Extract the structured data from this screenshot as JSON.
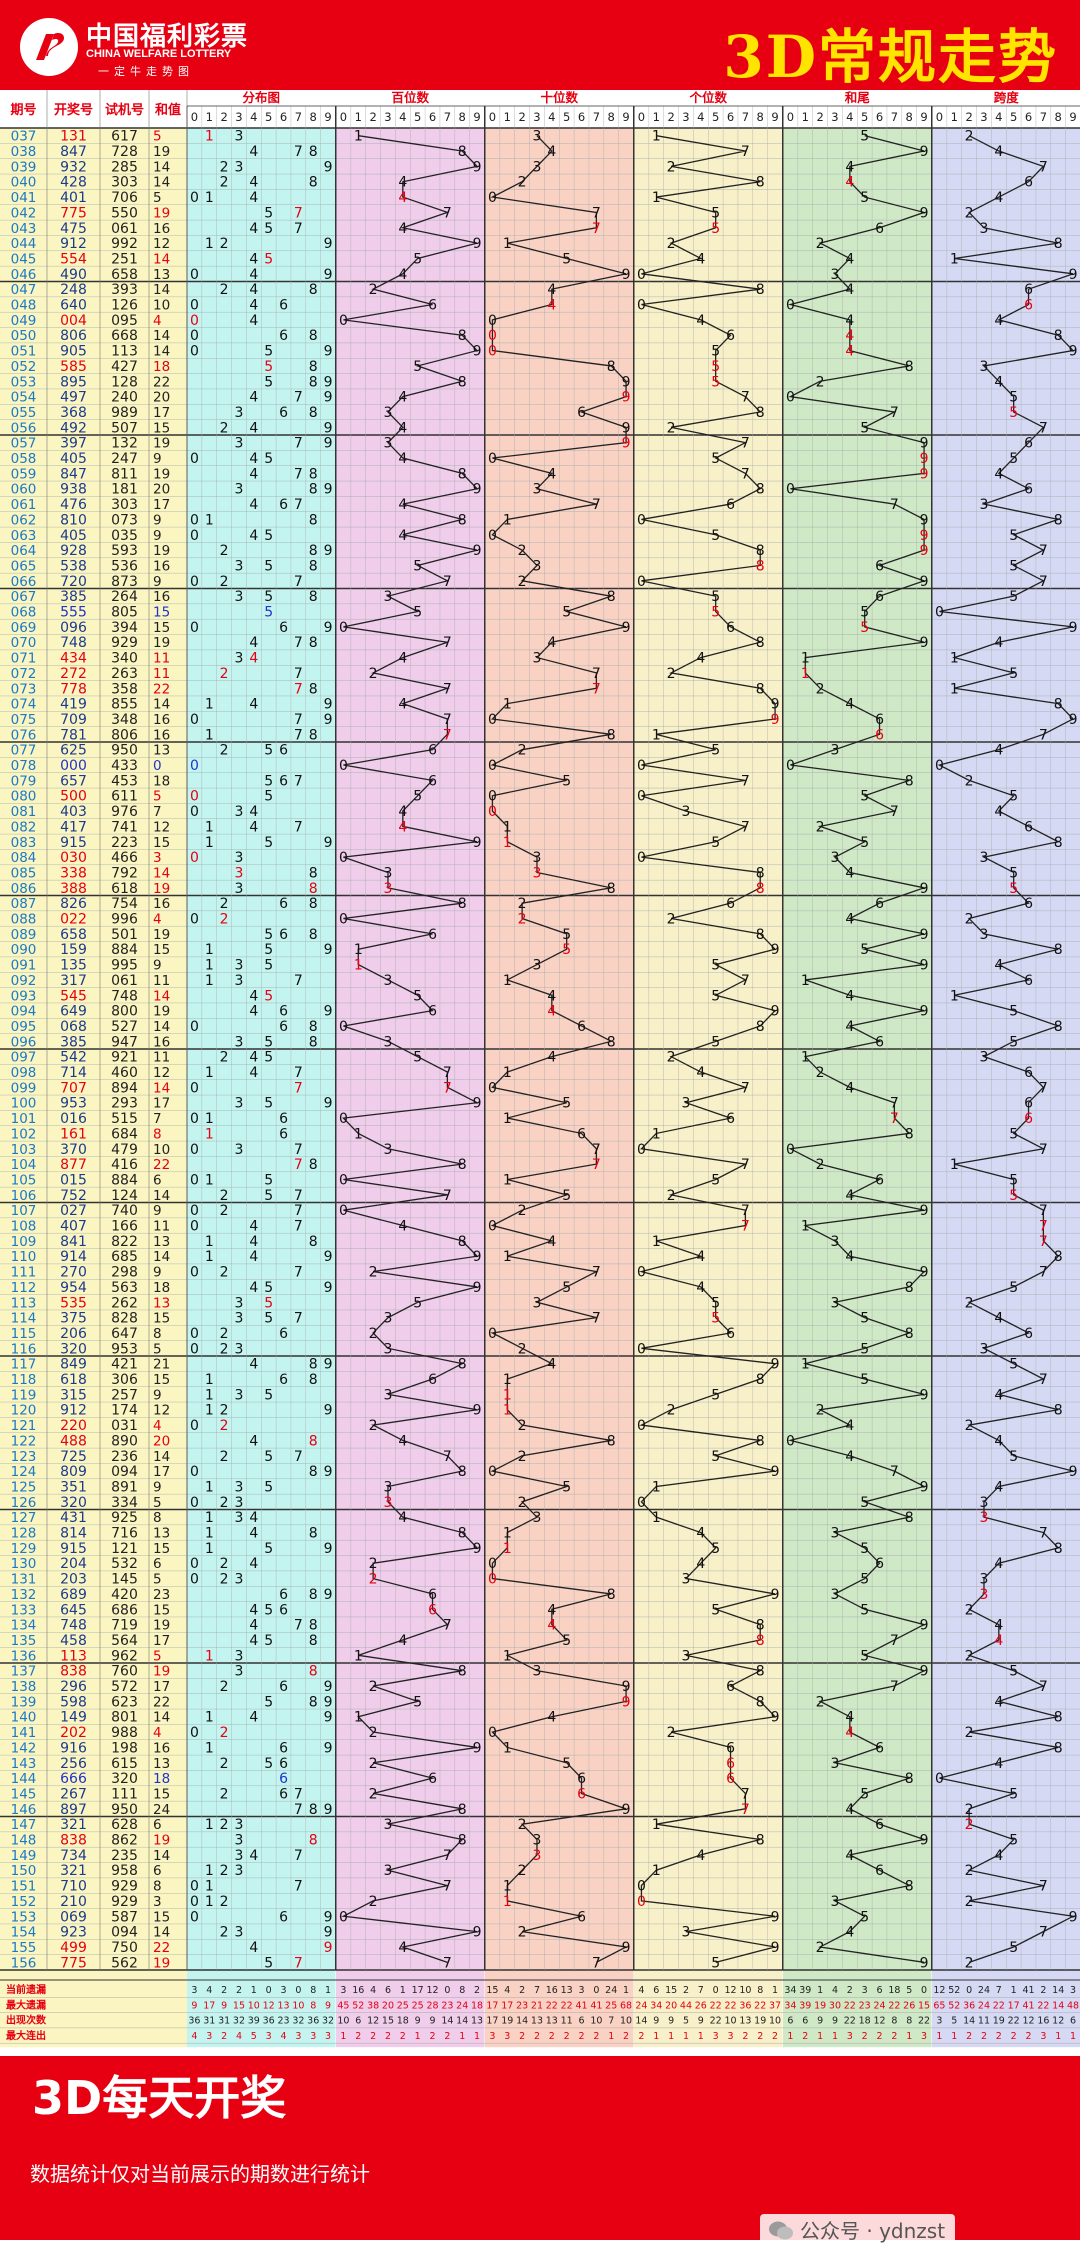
{
  "header": {
    "logo_cn": "中国福利彩票",
    "logo_en": "CHINA WELFARE LOTTERY",
    "logo_slogan": "一定牛走势图",
    "title": "3D常规走势"
  },
  "footer": {
    "banner": "3D每天开奖",
    "note": "数据统计仅对当前展示的期数进行统计",
    "account": "公众号 · ydnzst"
  },
  "colors": {
    "brand_red": "#e60012",
    "title_yellow": "#ffe400",
    "hit_red": "#e60012",
    "triple_blue": "#1f35c8",
    "bg_dist": "#c4f4f0",
    "bg_hundreds": "#efcdeb",
    "bg_tens": "#f9d2c4",
    "bg_units": "#f8f0c8",
    "bg_sumtail": "#cfe8c6",
    "bg_span": "#d6d9f4"
  },
  "chart_data": {
    "type": "table",
    "columns": [
      "期号",
      "开奖号",
      "试机号",
      "和值",
      "分布图",
      "百位数",
      "十位数",
      "个位数",
      "和尾",
      "跨度"
    ],
    "digit_headers": [
      "0",
      "1",
      "2",
      "3",
      "4",
      "5",
      "6",
      "7",
      "8",
      "9"
    ],
    "stats_labels": [
      "当前遗漏",
      "最大遗漏",
      "出现次数",
      "最大连出"
    ],
    "periods": [
      "037",
      "038",
      "039",
      "040",
      "041",
      "042",
      "043",
      "044",
      "045",
      "046",
      "047",
      "048",
      "049",
      "050",
      "051",
      "052",
      "053",
      "054",
      "055",
      "056",
      "057",
      "058",
      "059",
      "060",
      "061",
      "062",
      "063",
      "064",
      "065",
      "066",
      "067",
      "068",
      "069",
      "070",
      "071",
      "072",
      "073",
      "074",
      "075",
      "076",
      "077",
      "078",
      "079",
      "080",
      "081",
      "082",
      "083",
      "084",
      "085",
      "086",
      "087",
      "088",
      "089",
      "090",
      "091",
      "092",
      "093",
      "094",
      "095",
      "096",
      "097",
      "098",
      "099",
      "100",
      "101",
      "102",
      "103",
      "104",
      "105",
      "106",
      "107",
      "108",
      "109",
      "110",
      "111",
      "112",
      "113",
      "114",
      "115",
      "116",
      "117",
      "118",
      "119",
      "120",
      "121",
      "122",
      "123",
      "124",
      "125",
      "126",
      "127",
      "128",
      "129",
      "130",
      "131",
      "132",
      "133",
      "134",
      "135",
      "136",
      "137",
      "138",
      "139",
      "140",
      "141",
      "142",
      "143",
      "144",
      "145",
      "146",
      "147",
      "148",
      "149",
      "150",
      "151",
      "152",
      "153",
      "154",
      "155",
      "156"
    ],
    "draws": [
      "131",
      "847",
      "932",
      "428",
      "401",
      "775",
      "475",
      "912",
      "554",
      "490",
      "248",
      "640",
      "004",
      "806",
      "905",
      "585",
      "895",
      "497",
      "368",
      "492",
      "397",
      "405",
      "847",
      "938",
      "476",
      "810",
      "405",
      "928",
      "538",
      "720",
      "385",
      "555",
      "096",
      "748",
      "434",
      "272",
      "778",
      "419",
      "709",
      "781",
      "625",
      "000",
      "657",
      "500",
      "403",
      "417",
      "915",
      "030",
      "338",
      "388",
      "826",
      "022",
      "658",
      "159",
      "135",
      "317",
      "545",
      "649",
      "068",
      "385",
      "542",
      "714",
      "707",
      "953",
      "016",
      "161",
      "370",
      "877",
      "015",
      "752",
      "027",
      "407",
      "841",
      "914",
      "270",
      "954",
      "535",
      "375",
      "206",
      "320",
      "849",
      "618",
      "315",
      "912",
      "220",
      "488",
      "725",
      "809",
      "351",
      "320",
      "431",
      "814",
      "915",
      "204",
      "203",
      "689",
      "645",
      "748",
      "458",
      "113",
      "838",
      "296",
      "598",
      "149",
      "202",
      "916",
      "256",
      "666",
      "267",
      "897",
      "321",
      "838",
      "734",
      "321",
      "710",
      "210",
      "069",
      "923",
      "499",
      "775"
    ],
    "trials": [
      "617",
      "728",
      "285",
      "303",
      "706",
      "550",
      "061",
      "992",
      "251",
      "658",
      "393",
      "126",
      "095",
      "668",
      "113",
      "427",
      "128",
      "240",
      "989",
      "507",
      "132",
      "247",
      "811",
      "181",
      "303",
      "073",
      "035",
      "593",
      "536",
      "873",
      "264",
      "805",
      "394",
      "929",
      "340",
      "263",
      "358",
      "855",
      "348",
      "806",
      "950",
      "433",
      "453",
      "611",
      "976",
      "741",
      "223",
      "466",
      "792",
      "618",
      "754",
      "996",
      "501",
      "884",
      "995",
      "061",
      "748",
      "800",
      "527",
      "947",
      "921",
      "460",
      "894",
      "293",
      "515",
      "684",
      "479",
      "416",
      "884",
      "124",
      "740",
      "166",
      "822",
      "685",
      "298",
      "563",
      "262",
      "828",
      "647",
      "953",
      "421",
      "306",
      "257",
      "174",
      "031",
      "890",
      "236",
      "094",
      "891",
      "334",
      "925",
      "716",
      "121",
      "532",
      "145",
      "420",
      "686",
      "719",
      "564",
      "962",
      "760",
      "572",
      "623",
      "801",
      "988",
      "198",
      "615",
      "320",
      "111",
      "950",
      "628",
      "862",
      "235",
      "958",
      "929",
      "929",
      "587",
      "094",
      "750",
      "562"
    ]
  }
}
